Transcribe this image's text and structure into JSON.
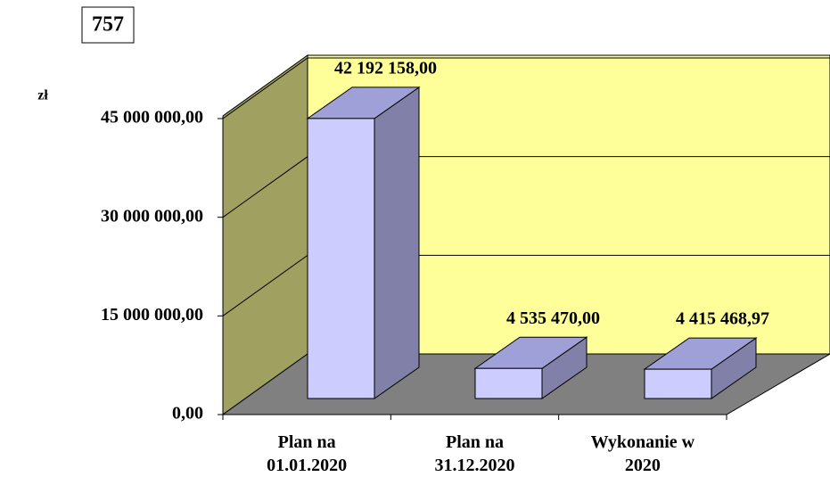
{
  "chart_data": {
    "type": "bar3d",
    "title": "757",
    "y_label": "zł",
    "categories": [
      "Plan na\n01.01.2020",
      "Plan na\n31.12.2020",
      "Wykonanie w\n2020"
    ],
    "values": [
      42192158,
      4535470,
      4415468.97
    ],
    "value_labels": [
      "42 192 158,00",
      "4 535 470,00",
      "4 415 468,97"
    ],
    "color": "#ccccff",
    "ylim": [
      0,
      45000000
    ],
    "yticks": [
      {
        "value": 0,
        "label": "0,00"
      },
      {
        "value": 15000000,
        "label": "15 000 000,00"
      },
      {
        "value": 30000000,
        "label": "30 000 000,00"
      },
      {
        "value": 45000000,
        "label": "45 000 000,00"
      }
    ],
    "grid": true
  }
}
